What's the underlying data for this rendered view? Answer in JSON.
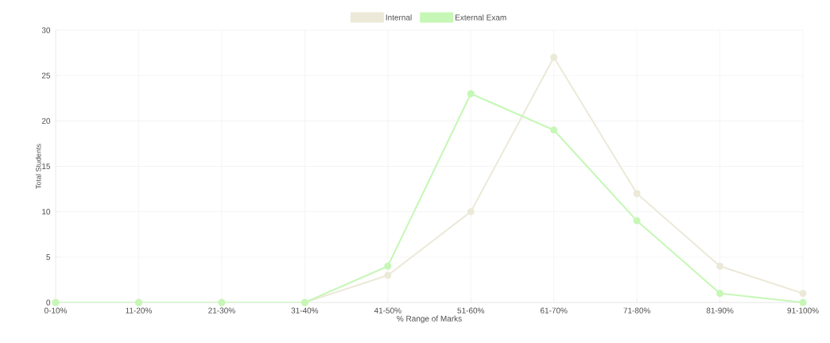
{
  "chart_data": {
    "type": "line",
    "xlabel": "% Range of Marks",
    "ylabel": "Total Students",
    "categories": [
      "0-10%",
      "11-20%",
      "21-30%",
      "31-40%",
      "41-50%",
      "51-60%",
      "61-70%",
      "71-80%",
      "81-90%",
      "91-100%"
    ],
    "series": [
      {
        "name": "Internal",
        "color": "#ece9d8",
        "values": [
          0,
          0,
          0,
          0,
          3,
          10,
          27,
          12,
          4,
          1
        ]
      },
      {
        "name": "External Exam",
        "color": "#c6f7b6",
        "values": [
          0,
          0,
          0,
          0,
          4,
          23,
          19,
          9,
          1,
          0
        ]
      }
    ],
    "ylim": [
      0,
      30
    ],
    "yticks": [
      0,
      5,
      10,
      15,
      20,
      25,
      30
    ],
    "grid": true,
    "legend": "top",
    "marker": "circle",
    "line_style": "solid"
  }
}
